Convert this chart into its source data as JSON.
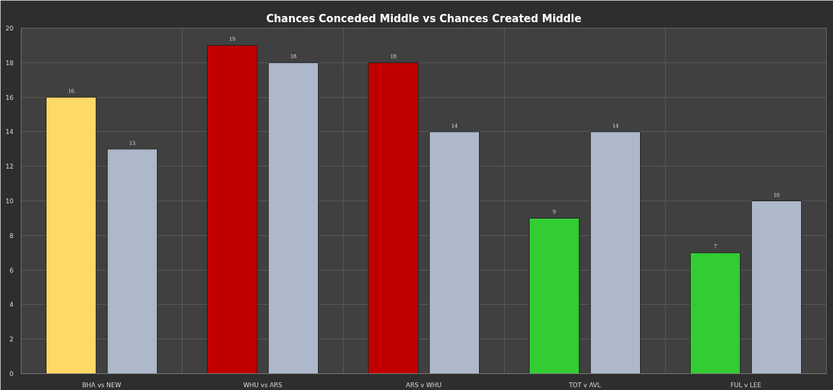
{
  "chart_data": {
    "type": "bar",
    "title": "Chances Conceded Middle vs Chances Created Middle",
    "categories": [
      "BHA vs NEW",
      "WHU vs ARS",
      "ARS v WHU",
      "TOT v AVL",
      "FUL v LEE"
    ],
    "series": [
      {
        "colors": [
          "#ffd966",
          "#c00000",
          "#c00000",
          "#33cc33",
          "#33cc33"
        ],
        "values": [
          16,
          19,
          18,
          9,
          7
        ]
      },
      {
        "color": "#adb9ca",
        "values": [
          13,
          18,
          14,
          14,
          10
        ]
      }
    ],
    "ylim": [
      0,
      20
    ],
    "yticks": [
      0,
      2,
      4,
      6,
      8,
      10,
      12,
      14,
      16,
      18,
      20
    ],
    "grid": true,
    "data_labels": true
  }
}
